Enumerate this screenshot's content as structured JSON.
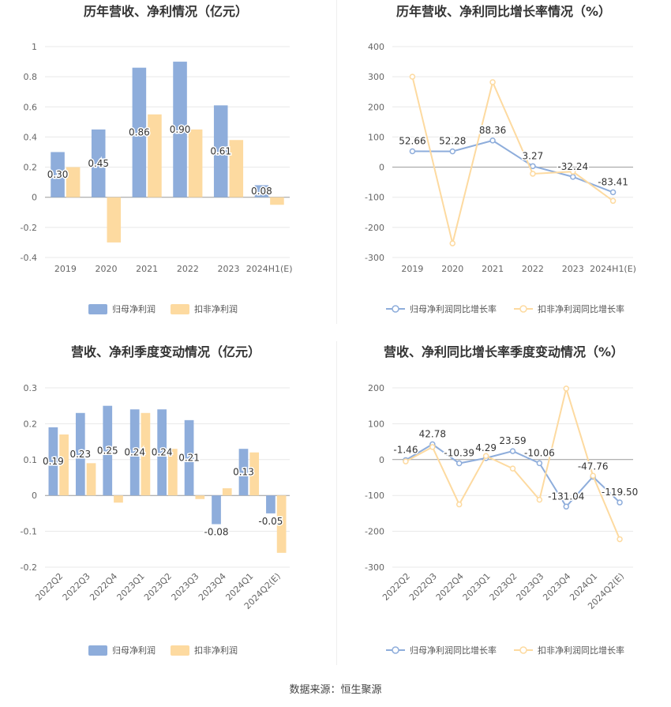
{
  "source": "数据来源：恒生聚源",
  "colors": {
    "series1": "#8eaddb",
    "series2": "#fddaa0",
    "grid": "#e8e8e8",
    "axis": "#888888",
    "text": "#444444"
  },
  "charts": [
    {
      "type": "bar",
      "title": "历年营收、净利情况（亿元）",
      "categories": [
        "2019",
        "2020",
        "2021",
        "2022",
        "2023",
        "2024H1(E)"
      ],
      "yticks": [
        "1",
        "0.8",
        "0.6",
        "0.4",
        "0.2",
        "0",
        "-0.2",
        "-0.4"
      ],
      "ylim": [
        -0.4,
        1
      ],
      "series": [
        {
          "name": "归母净利润",
          "values": [
            0.3,
            0.45,
            0.86,
            0.9,
            0.61,
            0.08
          ],
          "labels": [
            "0.30",
            "0.45",
            "0.86",
            "0.90",
            "0.61",
            "0.08"
          ]
        },
        {
          "name": "扣非净利润",
          "values": [
            0.2,
            -0.3,
            0.55,
            0.45,
            0.38,
            -0.05
          ]
        }
      ],
      "legend": "bottom",
      "rotate_x": false
    },
    {
      "type": "line",
      "title": "历年营收、净利同比增长率情况（%）",
      "categories": [
        "2019",
        "2020",
        "2021",
        "2022",
        "2023",
        "2024H1(E)"
      ],
      "yticks": [
        "400",
        "300",
        "200",
        "100",
        "0",
        "-100",
        "-200",
        "-300"
      ],
      "ylim": [
        -300,
        400
      ],
      "series": [
        {
          "name": "归母净利润同比增长率",
          "values": [
            52.66,
            52.28,
            88.36,
            3.27,
            -32.24,
            -83.41
          ],
          "labels": [
            "52.66",
            "52.28",
            "88.36",
            "3.27",
            "-32.24",
            "-83.41"
          ]
        },
        {
          "name": "扣非净利润同比增长率",
          "values": [
            300,
            -253,
            282,
            -22,
            -15,
            -112
          ]
        }
      ],
      "legend": "bottom",
      "rotate_x": false
    },
    {
      "type": "bar",
      "title": "营收、净利季度变动情况（亿元）",
      "categories": [
        "2022Q2",
        "2022Q3",
        "2022Q4",
        "2023Q1",
        "2023Q2",
        "2023Q3",
        "2023Q4",
        "2024Q1",
        "2024Q2(E)"
      ],
      "yticks": [
        "0.3",
        "0.2",
        "0.1",
        "0",
        "-0.1",
        "-0.2"
      ],
      "ylim": [
        -0.2,
        0.3
      ],
      "series": [
        {
          "name": "归母净利润",
          "values": [
            0.19,
            0.23,
            0.25,
            0.24,
            0.24,
            0.21,
            -0.08,
            0.13,
            -0.05
          ],
          "labels": [
            "0.19",
            "0.23",
            "0.25",
            "0.24",
            "0.24",
            "0.21",
            "-0.08",
            "0.13",
            "-0.05"
          ]
        },
        {
          "name": "扣非净利润",
          "values": [
            0.17,
            0.09,
            -0.02,
            0.23,
            0.13,
            -0.01,
            0.02,
            0.12,
            -0.16
          ]
        }
      ],
      "legend": "bottom",
      "rotate_x": true
    },
    {
      "type": "line",
      "title": "营收、净利同比增长率季度变动情况（%）",
      "categories": [
        "2022Q2",
        "2022Q3",
        "2022Q4",
        "2023Q1",
        "2023Q2",
        "2023Q3",
        "2023Q4",
        "2024Q1",
        "2024Q2(E)"
      ],
      "yticks": [
        "200",
        "100",
        "0",
        "-100",
        "-200",
        "-300"
      ],
      "ylim": [
        -300,
        200
      ],
      "series": [
        {
          "name": "归母净利润同比增长率",
          "values": [
            -1.46,
            42.78,
            -10.39,
            4.29,
            23.59,
            -10.06,
            -131.04,
            -47.76,
            -119.5
          ],
          "labels": [
            "-1.46",
            "42.78",
            "-10.39",
            "4.29",
            "23.59",
            "-10.06",
            "-131.04",
            "-47.76",
            "-119.50"
          ]
        },
        {
          "name": "扣非净利润同比增长率",
          "values": [
            -5,
            35,
            -125,
            10,
            -25,
            -112,
            198,
            -45,
            -222
          ]
        }
      ],
      "legend": "bottom",
      "rotate_x": true
    }
  ]
}
